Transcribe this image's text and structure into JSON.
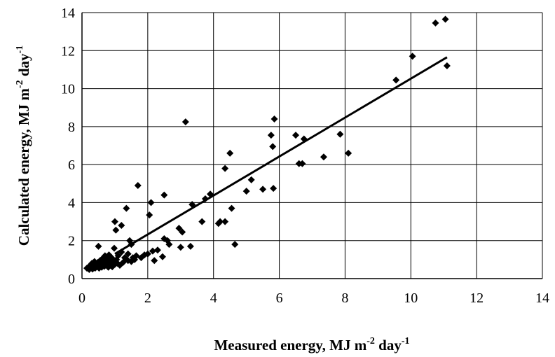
{
  "chart_data": {
    "type": "scatter",
    "xlabel": "Measured energy, MJ m-2 day-1",
    "ylabel": "Calculated energy, MJ m-2 day-1",
    "xlabel_parts": [
      "Measured energy, MJ m",
      "-2",
      " day",
      "-1"
    ],
    "ylabel_parts": [
      "Calculated energy, MJ m",
      "-2",
      " day",
      "-1"
    ],
    "xlim": [
      0,
      14
    ],
    "ylim": [
      0,
      14
    ],
    "xticks": [
      "0",
      "2",
      "4",
      "6",
      "8",
      "10",
      "12",
      "14"
    ],
    "yticks": [
      "0",
      "2",
      "4",
      "6",
      "8",
      "10",
      "12",
      "14"
    ],
    "grid": true,
    "marker": "diamond",
    "colors": {
      "points": "#000000",
      "grid": "#000000",
      "trendline": "#000000"
    },
    "trendline": {
      "x": [
        1.0,
        11.1
      ],
      "y": [
        1.3,
        11.65
      ]
    },
    "points": [
      [
        0.15,
        0.55
      ],
      [
        0.2,
        0.6
      ],
      [
        0.22,
        0.48
      ],
      [
        0.25,
        0.7
      ],
      [
        0.28,
        0.58
      ],
      [
        0.3,
        0.8
      ],
      [
        0.32,
        0.5
      ],
      [
        0.35,
        0.65
      ],
      [
        0.38,
        0.9
      ],
      [
        0.4,
        0.55
      ],
      [
        0.42,
        0.75
      ],
      [
        0.45,
        0.62
      ],
      [
        0.48,
        0.85
      ],
      [
        0.5,
        0.7
      ],
      [
        0.5,
        1.7
      ],
      [
        0.52,
        0.55
      ],
      [
        0.55,
        0.95
      ],
      [
        0.58,
        0.72
      ],
      [
        0.6,
        0.6
      ],
      [
        0.62,
        1.05
      ],
      [
        0.65,
        0.8
      ],
      [
        0.68,
        0.65
      ],
      [
        0.7,
        1.2
      ],
      [
        0.72,
        0.88
      ],
      [
        0.75,
        0.7
      ],
      [
        0.78,
        1.0
      ],
      [
        0.8,
        0.6
      ],
      [
        0.82,
        1.25
      ],
      [
        0.85,
        0.85
      ],
      [
        0.88,
        0.7
      ],
      [
        0.9,
        1.1
      ],
      [
        0.92,
        0.62
      ],
      [
        0.95,
        0.9
      ],
      [
        0.98,
        1.6
      ],
      [
        1.0,
        0.75
      ],
      [
        1.0,
        3.0
      ],
      [
        1.03,
        2.55
      ],
      [
        1.05,
        1.0
      ],
      [
        1.08,
        0.8
      ],
      [
        1.1,
        1.2
      ],
      [
        1.15,
        0.7
      ],
      [
        1.2,
        1.4
      ],
      [
        1.2,
        2.8
      ],
      [
        1.25,
        0.85
      ],
      [
        1.3,
        1.1
      ],
      [
        1.35,
        3.7
      ],
      [
        1.4,
        0.95
      ],
      [
        1.4,
        1.3
      ],
      [
        1.45,
        2.0
      ],
      [
        1.5,
        0.9
      ],
      [
        1.5,
        1.8
      ],
      [
        1.55,
        1.1
      ],
      [
        1.6,
        1.0
      ],
      [
        1.65,
        1.2
      ],
      [
        1.7,
        4.9
      ],
      [
        1.8,
        1.1
      ],
      [
        1.9,
        1.25
      ],
      [
        2.0,
        1.3
      ],
      [
        2.05,
        3.35
      ],
      [
        2.1,
        4.0
      ],
      [
        2.15,
        1.45
      ],
      [
        2.2,
        0.95
      ],
      [
        2.3,
        1.5
      ],
      [
        2.45,
        1.15
      ],
      [
        2.5,
        2.1
      ],
      [
        2.5,
        4.4
      ],
      [
        2.6,
        2.0
      ],
      [
        2.65,
        1.8
      ],
      [
        2.95,
        2.65
      ],
      [
        3.0,
        1.65
      ],
      [
        3.05,
        2.45
      ],
      [
        3.15,
        8.25
      ],
      [
        3.3,
        1.7
      ],
      [
        3.35,
        3.9
      ],
      [
        3.65,
        3.0
      ],
      [
        3.75,
        4.2
      ],
      [
        3.9,
        4.45
      ],
      [
        4.15,
        2.9
      ],
      [
        4.2,
        3.0
      ],
      [
        4.35,
        3.0
      ],
      [
        4.35,
        5.8
      ],
      [
        4.5,
        6.6
      ],
      [
        4.55,
        3.7
      ],
      [
        4.65,
        1.8
      ],
      [
        5.0,
        4.6
      ],
      [
        5.15,
        5.2
      ],
      [
        5.5,
        4.7
      ],
      [
        5.75,
        7.55
      ],
      [
        5.8,
        6.95
      ],
      [
        5.82,
        4.75
      ],
      [
        5.85,
        8.4
      ],
      [
        6.5,
        7.55
      ],
      [
        6.6,
        6.05
      ],
      [
        6.7,
        6.05
      ],
      [
        6.75,
        7.35
      ],
      [
        7.35,
        6.4
      ],
      [
        7.85,
        7.6
      ],
      [
        8.1,
        6.6
      ],
      [
        9.55,
        10.45
      ],
      [
        10.05,
        11.7
      ],
      [
        10.75,
        13.45
      ],
      [
        11.05,
        13.65
      ],
      [
        11.1,
        11.2
      ]
    ]
  }
}
